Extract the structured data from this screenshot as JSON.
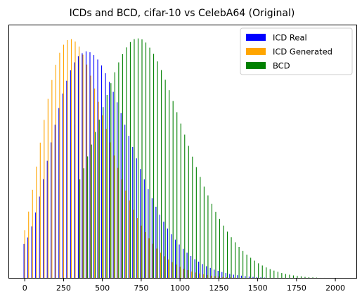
{
  "chart_data": {
    "type": "bar",
    "title": "ICDs and BCD, cifar-10 vs CelebA64 (Original)",
    "xlabel": "",
    "ylabel": "",
    "xlim": [
      -105,
      2140
    ],
    "ylim": [
      0,
      1.05
    ],
    "y_ticks_visible": false,
    "grid": false,
    "legend_position": "top-right",
    "x_ticks": [
      0,
      250,
      500,
      750,
      1000,
      1250,
      1500,
      1750,
      2000
    ],
    "x_tick_labels": [
      "0",
      "250",
      "500",
      "750",
      "1000",
      "1250",
      "1500",
      "1750",
      "2000"
    ],
    "bar_width": 5,
    "x": [
      0,
      25,
      50,
      75,
      100,
      125,
      150,
      175,
      200,
      225,
      250,
      275,
      300,
      325,
      350,
      375,
      400,
      425,
      450,
      475,
      500,
      525,
      550,
      575,
      600,
      625,
      650,
      675,
      700,
      725,
      750,
      775,
      800,
      825,
      850,
      875,
      900,
      925,
      950,
      975,
      1000,
      1025,
      1050,
      1075,
      1100,
      1125,
      1150,
      1175,
      1200,
      1225,
      1250,
      1275,
      1300,
      1325,
      1350,
      1375,
      1400,
      1425,
      1450,
      1475,
      1500,
      1525,
      1550,
      1575,
      1600,
      1625,
      1650,
      1675,
      1700,
      1725,
      1750,
      1775,
      1800,
      1825,
      1850,
      1875,
      1900,
      1925,
      1950,
      1975,
      2000
    ],
    "series": [
      {
        "name": "ICD Real",
        "color": "#0000ff",
        "offset": -5,
        "values": [
          0.143,
          0.17,
          0.216,
          0.273,
          0.339,
          0.411,
          0.487,
          0.563,
          0.636,
          0.705,
          0.765,
          0.818,
          0.861,
          0.894,
          0.919,
          0.932,
          0.939,
          0.936,
          0.925,
          0.906,
          0.881,
          0.849,
          0.813,
          0.772,
          0.729,
          0.684,
          0.636,
          0.59,
          0.544,
          0.497,
          0.453,
          0.41,
          0.37,
          0.332,
          0.297,
          0.264,
          0.235,
          0.207,
          0.183,
          0.161,
          0.141,
          0.123,
          0.107,
          0.093,
          0.08,
          0.07,
          0.06,
          0.051,
          0.044,
          0.037,
          0.032,
          0.027,
          0.023,
          0.019,
          0.016,
          0.014,
          0.012,
          0.01,
          0.008,
          0.007,
          0.006,
          0.005,
          0.004,
          0.003,
          0.003,
          0.002,
          0.002,
          0.002,
          0.001,
          0.001,
          0.001,
          0.001,
          0.001,
          0.0,
          0.0,
          0.0,
          0.0,
          0.0,
          0.0,
          0.0,
          0.0
        ]
      },
      {
        "name": "ICD Generated",
        "color": "#ffa500",
        "offset": 0,
        "values": [
          0.2,
          0.277,
          0.367,
          0.463,
          0.562,
          0.656,
          0.743,
          0.821,
          0.884,
          0.934,
          0.967,
          0.986,
          0.99,
          0.98,
          0.959,
          0.926,
          0.885,
          0.839,
          0.786,
          0.731,
          0.675,
          0.619,
          0.563,
          0.509,
          0.458,
          0.41,
          0.364,
          0.323,
          0.285,
          0.25,
          0.219,
          0.192,
          0.167,
          0.144,
          0.124,
          0.107,
          0.092,
          0.079,
          0.068,
          0.058,
          0.049,
          0.041,
          0.035,
          0.029,
          0.025,
          0.021,
          0.018,
          0.015,
          0.012,
          0.01,
          0.009,
          0.007,
          0.006,
          0.005,
          0.004,
          0.003,
          0.003,
          0.002,
          0.002,
          0.002,
          0.001,
          0.001,
          0.001,
          0.001,
          0.0,
          0.0,
          0.0,
          0.0,
          0.0,
          0.0,
          0.0,
          0.0,
          0.0,
          0.0,
          0.0,
          0.0,
          0.0,
          0.0,
          0.0,
          0.0,
          0.0
        ]
      },
      {
        "name": "BCD",
        "color": "#008000",
        "offset": 5,
        "values": [
          0.0,
          0.0,
          0.0,
          0.0,
          0.0,
          0.0,
          0.0,
          0.0,
          0.0,
          0.0,
          0.0,
          0.0,
          0.0,
          0.0,
          0.41,
          0.456,
          0.505,
          0.554,
          0.606,
          0.657,
          0.709,
          0.759,
          0.808,
          0.853,
          0.894,
          0.928,
          0.956,
          0.978,
          0.99,
          0.993,
          0.989,
          0.976,
          0.955,
          0.929,
          0.898,
          0.862,
          0.822,
          0.779,
          0.734,
          0.688,
          0.641,
          0.595,
          0.549,
          0.504,
          0.461,
          0.42,
          0.38,
          0.344,
          0.309,
          0.276,
          0.247,
          0.219,
          0.194,
          0.171,
          0.15,
          0.131,
          0.114,
          0.099,
          0.086,
          0.074,
          0.063,
          0.054,
          0.046,
          0.039,
          0.033,
          0.028,
          0.023,
          0.019,
          0.016,
          0.013,
          0.011,
          0.009,
          0.007,
          0.006,
          0.005,
          0.004,
          0.003,
          0.003,
          0.002,
          0.002,
          0.001
        ]
      }
    ]
  }
}
